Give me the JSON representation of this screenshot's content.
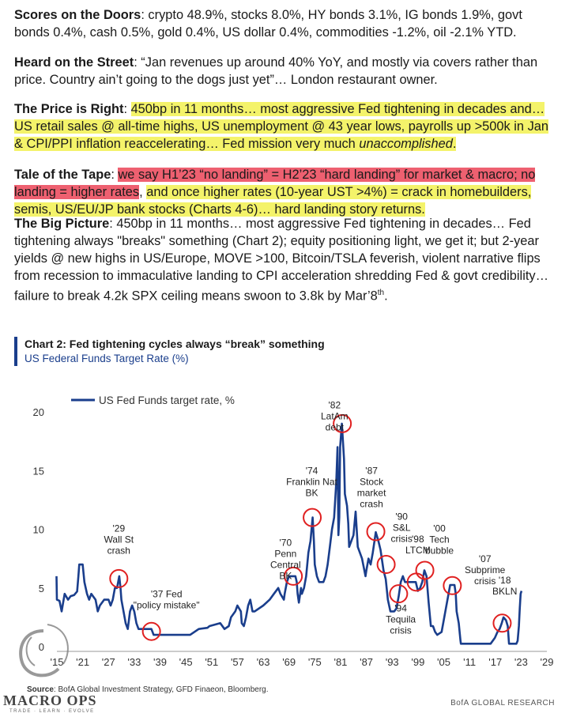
{
  "paragraphs": {
    "p1": {
      "label": "Scores on the Doors",
      "text": ": crypto 48.9%, stocks 8.0%, HY bonds 3.1%, IG bonds 1.9%, govt bonds 0.4%, cash 0.5%, gold 0.4%, US dollar 0.4%, commodities -1.2%, oil -2.1% YTD."
    },
    "p2": {
      "label": "Heard on the Street",
      "text": ": “Jan revenues up around 40% YoY, and mostly via covers rather than price. Country ain’t going to the dogs just yet”… London restaurant owner."
    },
    "p3": {
      "label": "The Price is Right",
      "sep": ": ",
      "text": "450bp in 11 months… most aggressive Fed tightening in decades and… US retail sales @ all-time highs, US unemployment @ 43 year lows, payrolls up >500k in Jan & CPI/PPI inflation reaccelerating… Fed mission very much ",
      "italic": "unaccomplished",
      "end": "."
    },
    "p4": {
      "label": "Tale of the Tape",
      "sep": ": ",
      "red": "we say H1’23 “no landing” = H2’23 “hard landing” for market & macro; no landing = higher rates",
      "mid": ", ",
      "yellow": "and once higher rates (10-year UST >4%) = crack in homebuilders, semis, US/EU/JP bank stocks (Charts 4-6)… hard landing story returns",
      "end": "."
    },
    "p5": {
      "label": "The Big Picture",
      "text": ": 450bp in 11 months… most aggressive Fed tightening in decades… Fed tightening always \"breaks\" something (Chart 2); equity positioning light, we get it; but 2-year yields @ new highs in US/Europe, MOVE >100, Bitcoin/TSLA feverish, violent narrative flips from recession to immaculative landing to CPI acceleration shredding Fed & govt credibility… failure to break 4.2k SPX ceiling means swoon to 3.8k by Mar’8",
      "sup": "th",
      "end": "."
    }
  },
  "chart_header": {
    "title": "Chart 2: Fed tightening cycles always “break” something",
    "subtitle": "US Federal Funds Target Rate (%)"
  },
  "footer": {
    "source_label": "Source",
    "source_text": ": BofA Global Investment Strategy, GFD Finaeon, Bloomberg.",
    "right": "BofA GLOBAL RESEARCH",
    "logo_text": "MACRO OPS",
    "logo_tag": "TRADE · LEARN · EVOLVE"
  },
  "colors": {
    "line": "#1a3e8c",
    "highlight_yellow": "#f4f36a",
    "highlight_red": "#ee6070",
    "circle": "#e02020"
  },
  "chart_data": {
    "type": "line",
    "legend": "US Fed Funds target rate, %",
    "legend_position": "top-left",
    "xlim": [
      1915,
      2029
    ],
    "ylim": [
      0,
      20
    ],
    "yticks": [
      0,
      5,
      10,
      15,
      20
    ],
    "xtick_labels": [
      "'15",
      "'21",
      "'27",
      "'33",
      "'39",
      "'45",
      "'51",
      "'57",
      "'63",
      "'69",
      "'75",
      "'81",
      "'87",
      "'93",
      "'99",
      "'05",
      "'11",
      "'17",
      "'23",
      "'29"
    ],
    "xtick_years": [
      1915,
      1921,
      1927,
      1933,
      1939,
      1945,
      1951,
      1957,
      1963,
      1969,
      1975,
      1981,
      1987,
      1993,
      1999,
      2005,
      2011,
      2017,
      2023,
      2029
    ],
    "grid": false,
    "series": [
      {
        "name": "US Fed Funds target rate, %",
        "points": [
          [
            1914.9,
            6.0
          ],
          [
            1915.0,
            4.0
          ],
          [
            1915.6,
            3.9
          ],
          [
            1916.1,
            3.0
          ],
          [
            1916.8,
            4.5
          ],
          [
            1917.6,
            4.0
          ],
          [
            1918.2,
            4.3
          ],
          [
            1919.0,
            4.4
          ],
          [
            1919.7,
            4.7
          ],
          [
            1920.0,
            6.0
          ],
          [
            1920.2,
            7.0
          ],
          [
            1921.0,
            7.0
          ],
          [
            1921.4,
            5.5
          ],
          [
            1922.0,
            4.5
          ],
          [
            1922.5,
            4.0
          ],
          [
            1923.0,
            4.5
          ],
          [
            1924.0,
            4.0
          ],
          [
            1924.5,
            3.0
          ],
          [
            1925.0,
            3.5
          ],
          [
            1926.0,
            4.0
          ],
          [
            1927.0,
            4.0
          ],
          [
            1927.5,
            3.5
          ],
          [
            1928.0,
            4.0
          ],
          [
            1928.5,
            5.0
          ],
          [
            1929.0,
            5.0
          ],
          [
            1929.5,
            6.0
          ],
          [
            1929.8,
            5.0
          ],
          [
            1930.0,
            4.0
          ],
          [
            1930.5,
            3.0
          ],
          [
            1931.0,
            2.0
          ],
          [
            1931.5,
            1.5
          ],
          [
            1932.0,
            3.0
          ],
          [
            1932.5,
            3.5
          ],
          [
            1933.0,
            3.0
          ],
          [
            1933.5,
            2.0
          ],
          [
            1934.0,
            1.5
          ],
          [
            1936.0,
            1.5
          ],
          [
            1937.0,
            1.5
          ],
          [
            1937.5,
            1.0
          ],
          [
            1940.0,
            1.0
          ],
          [
            1942.0,
            1.0
          ],
          [
            1945.0,
            1.0
          ],
          [
            1946.0,
            1.0
          ],
          [
            1948.0,
            1.5
          ],
          [
            1950.0,
            1.6
          ],
          [
            1950.5,
            1.75
          ],
          [
            1953.0,
            2.0
          ],
          [
            1954.0,
            1.5
          ],
          [
            1955.0,
            1.75
          ],
          [
            1955.5,
            2.5
          ],
          [
            1956.5,
            3.0
          ],
          [
            1957.0,
            3.5
          ],
          [
            1957.8,
            3.0
          ],
          [
            1958.0,
            2.0
          ],
          [
            1958.5,
            1.75
          ],
          [
            1959.0,
            2.5
          ],
          [
            1959.5,
            3.5
          ],
          [
            1960.0,
            4.0
          ],
          [
            1960.5,
            3.0
          ],
          [
            1961.0,
            3.0
          ],
          [
            1963.0,
            3.5
          ],
          [
            1964.5,
            4.0
          ],
          [
            1965.5,
            4.5
          ],
          [
            1966.5,
            5.0
          ],
          [
            1967.0,
            4.5
          ],
          [
            1967.8,
            4.0
          ],
          [
            1968.0,
            4.5
          ],
          [
            1968.5,
            5.5
          ],
          [
            1969.0,
            6.0
          ],
          [
            1969.5,
            6.0
          ],
          [
            1970.5,
            6.0
          ],
          [
            1970.8,
            5.5
          ],
          [
            1971.0,
            4.5
          ],
          [
            1971.3,
            3.75
          ],
          [
            1971.8,
            5.0
          ],
          [
            1972.0,
            4.5
          ],
          [
            1972.5,
            5.0
          ],
          [
            1973.0,
            6.0
          ],
          [
            1973.5,
            8.0
          ],
          [
            1974.0,
            9.0
          ],
          [
            1974.5,
            11.0
          ],
          [
            1974.8,
            9.0
          ],
          [
            1975.0,
            7.0
          ],
          [
            1975.5,
            6.0
          ],
          [
            1976.0,
            5.5
          ],
          [
            1977.0,
            5.5
          ],
          [
            1977.5,
            6.0
          ],
          [
            1978.0,
            7.0
          ],
          [
            1978.5,
            8.5
          ],
          [
            1979.0,
            10.0
          ],
          [
            1979.5,
            11.0
          ],
          [
            1980.0,
            14.0
          ],
          [
            1980.3,
            17.0
          ],
          [
            1980.5,
            9.5
          ],
          [
            1980.7,
            11.0
          ],
          [
            1980.9,
            17.0
          ],
          [
            1981.3,
            19.0
          ],
          [
            1981.8,
            16.0
          ],
          [
            1982.0,
            13.0
          ],
          [
            1982.5,
            12.0
          ],
          [
            1982.8,
            10.5
          ],
          [
            1983.0,
            8.5
          ],
          [
            1984.0,
            9.5
          ],
          [
            1984.5,
            11.5
          ],
          [
            1985.0,
            8.5
          ],
          [
            1986.0,
            7.5
          ],
          [
            1986.8,
            6.0
          ],
          [
            1987.0,
            6.5
          ],
          [
            1987.5,
            7.5
          ],
          [
            1988.0,
            7.0
          ],
          [
            1988.5,
            8.0
          ],
          [
            1989.2,
            9.75
          ],
          [
            1989.8,
            9.0
          ],
          [
            1990.3,
            8.25
          ],
          [
            1991.0,
            6.5
          ],
          [
            1991.5,
            5.75
          ],
          [
            1992.0,
            4.0
          ],
          [
            1992.6,
            3.0
          ],
          [
            1993.5,
            3.0
          ],
          [
            1994.0,
            3.25
          ],
          [
            1994.5,
            4.25
          ],
          [
            1995.0,
            5.5
          ],
          [
            1995.5,
            6.0
          ],
          [
            1996.0,
            5.5
          ],
          [
            1997.0,
            5.5
          ],
          [
            1997.5,
            5.5
          ],
          [
            1998.5,
            5.5
          ],
          [
            1999.0,
            4.75
          ],
          [
            1999.5,
            5.0
          ],
          [
            2000.0,
            5.5
          ],
          [
            2000.5,
            6.5
          ],
          [
            2001.0,
            6.0
          ],
          [
            2001.5,
            3.75
          ],
          [
            2002.0,
            1.75
          ],
          [
            2002.5,
            1.75
          ],
          [
            2003.0,
            1.25
          ],
          [
            2003.5,
            1.0
          ],
          [
            2004.5,
            1.25
          ],
          [
            2005.0,
            2.25
          ],
          [
            2005.5,
            3.25
          ],
          [
            2006.0,
            4.25
          ],
          [
            2006.5,
            5.25
          ],
          [
            2007.5,
            5.25
          ],
          [
            2007.8,
            4.5
          ],
          [
            2008.0,
            3.0
          ],
          [
            2008.5,
            2.0
          ],
          [
            2008.9,
            0.5
          ],
          [
            2009.0,
            0.25
          ],
          [
            2012.0,
            0.25
          ],
          [
            2015.9,
            0.25
          ],
          [
            2016.9,
            0.75
          ],
          [
            2017.5,
            1.25
          ],
          [
            2018.0,
            1.5
          ],
          [
            2018.5,
            2.0
          ],
          [
            2018.9,
            2.5
          ],
          [
            2019.5,
            2.25
          ],
          [
            2019.9,
            1.75
          ],
          [
            2020.2,
            0.25
          ],
          [
            2021.9,
            0.25
          ],
          [
            2022.2,
            0.5
          ],
          [
            2022.5,
            1.75
          ],
          [
            2022.7,
            3.25
          ],
          [
            2022.9,
            4.5
          ],
          [
            2023.1,
            4.75
          ]
        ]
      }
    ],
    "annotations": [
      {
        "text": "'29 Wall St crash",
        "lines": [
          "'29",
          "Wall St",
          "crash"
        ],
        "x": 1929.4,
        "y": 5.8
      },
      {
        "text": "'37 Fed \"policy mistake\"",
        "lines": [
          "'37 Fed",
          "\"policy mistake\""
        ],
        "x": 1937.0,
        "y": 1.3
      },
      {
        "text": "'70 Penn Central BK",
        "lines": [
          "'70",
          "Penn",
          "Central",
          "BK"
        ],
        "x": 1970.0,
        "y": 6.0
      },
      {
        "text": "'74 Franklin Nat BK",
        "lines": [
          "'74",
          "Franklin Nat",
          "BK"
        ],
        "x": 1974.4,
        "y": 11.0
      },
      {
        "text": "'82 LatAm debt",
        "lines": [
          "'82",
          "LatAm",
          "debt"
        ],
        "x": 1981.4,
        "y": 19.0
      },
      {
        "text": "'87 Stock market crash",
        "lines": [
          "'87",
          "Stock",
          "market",
          "crash"
        ],
        "x": 1989.2,
        "y": 9.8
      },
      {
        "text": "'90 S&L crisis",
        "lines": [
          "'90",
          "S&L",
          "crisis"
        ],
        "x": 1991.6,
        "y": 7.0
      },
      {
        "text": "'94 Tequila crisis",
        "lines": [
          "'94",
          "Tequila",
          "crisis"
        ],
        "x": 1994.5,
        "y": 4.5
      },
      {
        "text": "'98 LTCM",
        "lines": [
          "'98",
          "LTCM"
        ],
        "x": 1998.6,
        "y": 5.5
      },
      {
        "text": "'00 Tech bubble",
        "lines": [
          "'00",
          "Tech",
          "bubble"
        ],
        "x": 2000.6,
        "y": 6.5
      },
      {
        "text": "'07 Subprime crisis",
        "lines": [
          "'07",
          "Subprime",
          "crisis"
        ],
        "x": 2007.0,
        "y": 5.2
      },
      {
        "text": "'18 BKLN",
        "lines": [
          "'18",
          "BKLN"
        ],
        "x": 2018.6,
        "y": 2.0
      }
    ]
  }
}
